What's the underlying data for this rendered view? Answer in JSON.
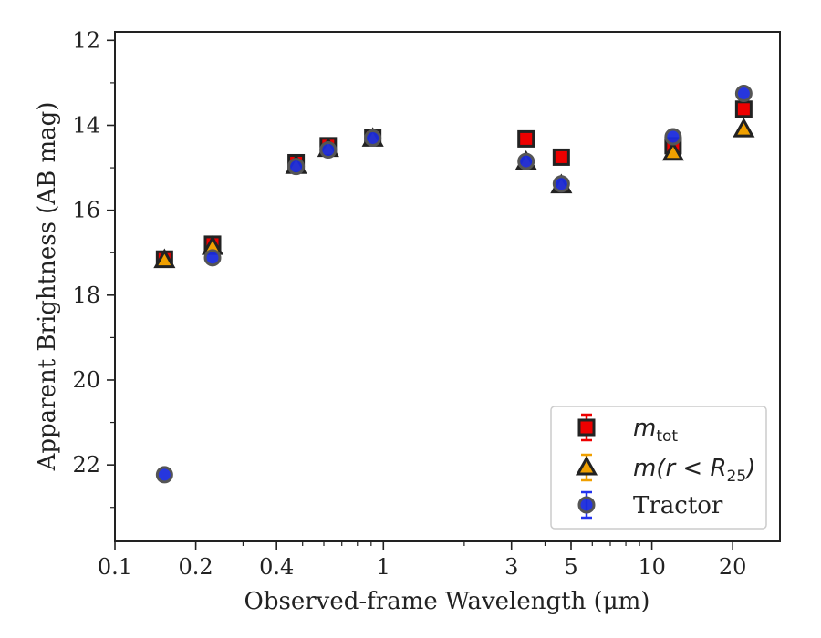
{
  "chart_data": {
    "type": "scatter",
    "title": "",
    "xlabel": "Observed-frame Wavelength (μm)",
    "ylabel": "Apparent Brightness (AB mag)",
    "xscale": "log",
    "xlim": [
      0.1,
      30
    ],
    "ylim": [
      23.8,
      11.8
    ],
    "y_inverted": true,
    "x_ticks": [
      0.1,
      0.2,
      0.4,
      1,
      3,
      5,
      10,
      20
    ],
    "x_tick_labels": [
      "0.1",
      "0.2",
      "0.4",
      "1",
      "3",
      "5",
      "10",
      "20"
    ],
    "y_ticks": [
      12,
      14,
      16,
      18,
      20,
      22
    ],
    "y_tick_labels": [
      "12",
      "14",
      "16",
      "18",
      "20",
      "22"
    ],
    "grid": false,
    "legend_position": "lower-right",
    "series": [
      {
        "name": "m_tot",
        "label_main": "m",
        "label_sub": "tot",
        "marker": "square",
        "fill": "#ee0000",
        "edge": "#222222",
        "errcolor": "#ee0000",
        "points": [
          {
            "x": 0.153,
            "y": 17.15
          },
          {
            "x": 0.231,
            "y": 16.8
          },
          {
            "x": 0.473,
            "y": 14.88
          },
          {
            "x": 0.623,
            "y": 14.48
          },
          {
            "x": 0.913,
            "y": 14.28
          },
          {
            "x": 3.4,
            "y": 14.32
          },
          {
            "x": 4.6,
            "y": 14.75
          },
          {
            "x": 12.0,
            "y": 14.48
          },
          {
            "x": 22.0,
            "y": 13.62
          }
        ]
      },
      {
        "name": "m(r<R_25)",
        "label_main": "m(r < R",
        "label_sub": "25",
        "label_tail": ")",
        "marker": "triangle",
        "fill": "#f0a000",
        "edge": "#222222",
        "errcolor": "#f0a000",
        "points": [
          {
            "x": 0.153,
            "y": 17.18
          },
          {
            "x": 0.231,
            "y": 16.87
          },
          {
            "x": 0.473,
            "y": 14.96
          },
          {
            "x": 0.623,
            "y": 14.56
          },
          {
            "x": 0.913,
            "y": 14.32
          },
          {
            "x": 3.4,
            "y": 14.87
          },
          {
            "x": 4.6,
            "y": 15.42
          },
          {
            "x": 12.0,
            "y": 14.65
          },
          {
            "x": 22.0,
            "y": 14.1
          }
        ]
      },
      {
        "name": "Tractor",
        "marker": "circle",
        "fill": "#1a2bdc",
        "edge": "#555555",
        "errcolor": "#2233ee",
        "points": [
          {
            "x": 0.153,
            "y": 22.23
          },
          {
            "x": 0.231,
            "y": 17.12
          },
          {
            "x": 0.473,
            "y": 14.97
          },
          {
            "x": 0.623,
            "y": 14.58
          },
          {
            "x": 0.913,
            "y": 14.3
          },
          {
            "x": 3.4,
            "y": 14.85
          },
          {
            "x": 4.6,
            "y": 15.38
          },
          {
            "x": 12.0,
            "y": 14.27
          },
          {
            "x": 22.0,
            "y": 13.25
          }
        ]
      }
    ]
  }
}
